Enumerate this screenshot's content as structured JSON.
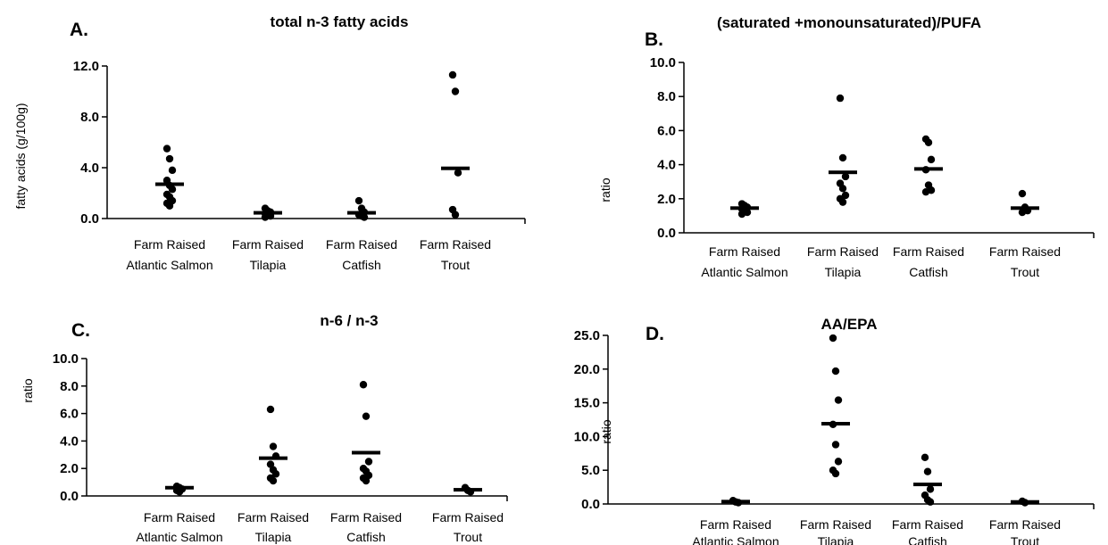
{
  "chart_data": [
    {
      "type": "scatter",
      "panel": "A.",
      "title": "total n-3 fatty acids",
      "ylabel": "fatty acids (g/100g)",
      "ylim": [
        0,
        12
      ],
      "yticks": [
        "0.0",
        "4.0",
        "8.0",
        "12.0"
      ],
      "categories": [
        [
          "Farm Raised",
          "Atlantic Salmon"
        ],
        [
          "Farm Raised",
          "Tilapia"
        ],
        [
          "Farm Raised",
          "Catfish"
        ],
        [
          "Farm Raised",
          "Trout"
        ]
      ],
      "points": [
        [
          5.5,
          4.7,
          3.8,
          3.0,
          2.6,
          2.3,
          1.9,
          1.7,
          1.4,
          1.2,
          1.0
        ],
        [
          0.8,
          0.6,
          0.5,
          0.4,
          0.3,
          0.2,
          0.1
        ],
        [
          1.4,
          0.8,
          0.5,
          0.3,
          0.2,
          0.1
        ],
        [
          11.3,
          10.0,
          3.6,
          0.7,
          0.3
        ]
      ],
      "means": [
        2.7,
        0.45,
        0.45,
        3.95
      ]
    },
    {
      "type": "scatter",
      "panel": "B.",
      "title": "(saturated +monounsaturated)/PUFA",
      "ylabel": "ratio",
      "ylim": [
        0,
        10
      ],
      "yticks": [
        "0.0",
        "2.0",
        "4.0",
        "6.0",
        "8.0",
        "10.0"
      ],
      "categories": [
        [
          "Farm Raised",
          "Atlantic Salmon"
        ],
        [
          "Farm Raised",
          "Tilapia"
        ],
        [
          "Farm Raised",
          "Catfish"
        ],
        [
          "Farm Raised",
          "Trout"
        ]
      ],
      "points": [
        [
          1.7,
          1.6,
          1.5,
          1.4,
          1.3,
          1.2,
          1.1
        ],
        [
          7.9,
          4.4,
          3.3,
          2.9,
          2.6,
          2.2,
          2.0,
          1.8
        ],
        [
          5.5,
          5.3,
          4.3,
          3.7,
          2.8,
          2.5,
          2.4
        ],
        [
          2.3,
          1.5,
          1.3,
          1.2
        ]
      ],
      "means": [
        1.45,
        3.55,
        3.75,
        1.45
      ]
    },
    {
      "type": "scatter",
      "panel": "C.",
      "title": "n-6 / n-3",
      "ylabel": "ratio",
      "ylim": [
        0,
        10
      ],
      "yticks": [
        "0.0",
        "2.0",
        "4.0",
        "6.0",
        "8.0",
        "10.0"
      ],
      "categories": [
        [
          "Farm Raised",
          "Atlantic Salmon"
        ],
        [
          "Farm Raised",
          "Tilapia"
        ],
        [
          "Farm Raised",
          "Catfish"
        ],
        [
          "Farm Raised",
          "Trout"
        ]
      ],
      "points": [
        [
          0.7,
          0.6,
          0.5,
          0.4,
          0.3
        ],
        [
          6.3,
          3.6,
          2.9,
          2.3,
          1.9,
          1.6,
          1.3,
          1.1
        ],
        [
          8.1,
          5.8,
          2.5,
          2.0,
          1.8,
          1.5,
          1.3,
          1.1
        ],
        [
          0.6,
          0.4,
          0.3
        ]
      ],
      "means": [
        0.6,
        2.75,
        3.15,
        0.45
      ]
    },
    {
      "type": "scatter",
      "panel": "D.",
      "title": "AA/EPA",
      "ylabel": "ratio",
      "ylim": [
        0,
        25
      ],
      "yticks": [
        "0.0",
        "5.0",
        "10.0",
        "15.0",
        "20.0",
        "25.0"
      ],
      "categories": [
        [
          "Farm Raised",
          "Atlantic Salmon"
        ],
        [
          "Farm Raised",
          "Tilapia"
        ],
        [
          "Farm Raised",
          "Catfish"
        ],
        [
          "Farm Raised",
          "Trout"
        ]
      ],
      "points": [
        [
          0.5,
          0.3,
          0.2
        ],
        [
          24.6,
          19.7,
          15.4,
          11.8,
          8.8,
          6.3,
          5.0,
          4.5
        ],
        [
          6.9,
          4.8,
          2.2,
          1.3,
          0.6,
          0.3
        ],
        [
          0.4,
          0.2
        ]
      ],
      "means": [
        0.35,
        11.9,
        2.9,
        0.3
      ]
    }
  ]
}
